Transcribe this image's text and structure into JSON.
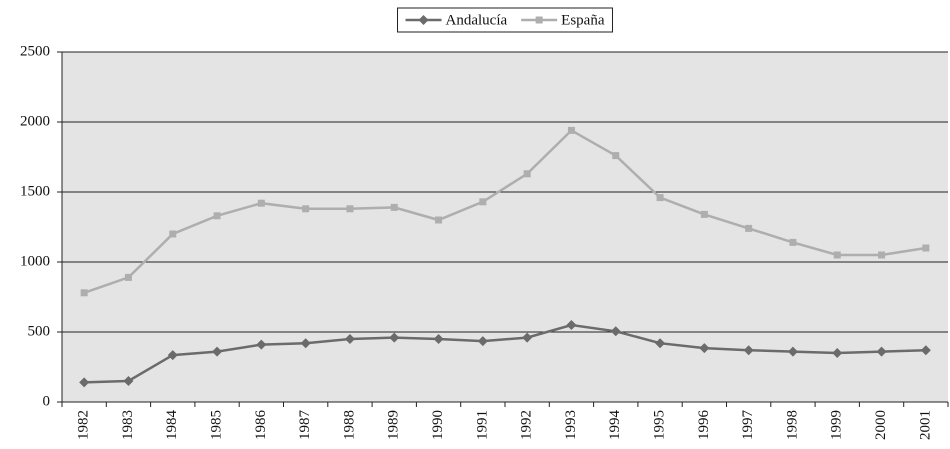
{
  "chart_data": {
    "type": "line",
    "categories": [
      "1982",
      "1983",
      "1984",
      "1985",
      "1986",
      "1987",
      "1988",
      "1989",
      "1990",
      "1991",
      "1992",
      "1993",
      "1994",
      "1995",
      "1996",
      "1997",
      "1998",
      "1999",
      "2000",
      "2001"
    ],
    "series": [
      {
        "name": "Andalucía",
        "color": "#6b6b6b",
        "marker": "diamond",
        "values": [
          140,
          150,
          335,
          360,
          410,
          420,
          450,
          460,
          450,
          435,
          460,
          550,
          505,
          420,
          385,
          370,
          360,
          350,
          360,
          370
        ]
      },
      {
        "name": "España",
        "color": "#aeaeae",
        "marker": "square",
        "values": [
          780,
          890,
          1200,
          1330,
          1420,
          1380,
          1380,
          1390,
          1300,
          1430,
          1630,
          1940,
          1760,
          1460,
          1340,
          1240,
          1140,
          1050,
          1050,
          1100
        ]
      }
    ],
    "ylim": [
      0,
      2500
    ],
    "yticks": [
      0,
      500,
      1000,
      1500,
      2000,
      2500
    ],
    "grid": true,
    "legend": "top"
  }
}
